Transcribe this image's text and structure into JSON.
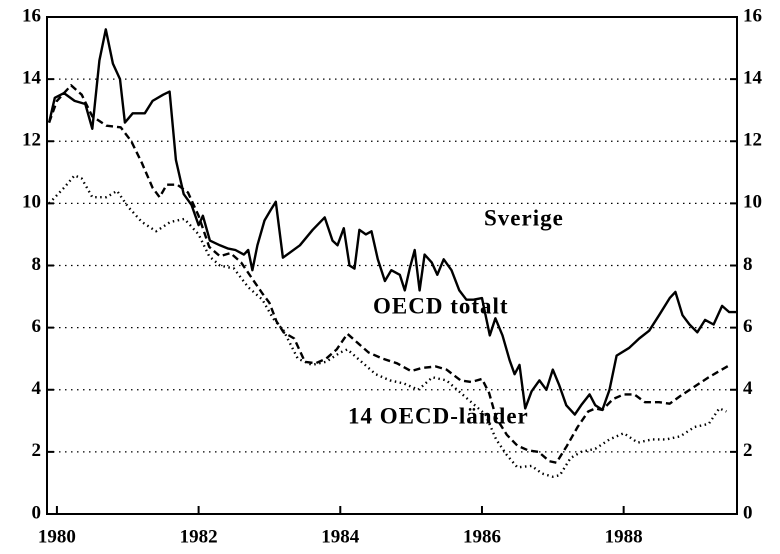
{
  "chart_data": {
    "type": "line",
    "xlim": [
      1979.86,
      1989.6
    ],
    "xticks": [
      1980,
      1982,
      1984,
      1986,
      1988
    ],
    "ylim": [
      0,
      16
    ],
    "yticks": [
      0,
      2,
      4,
      6,
      8,
      10,
      12,
      14,
      16
    ],
    "grid": true,
    "right_axis_labels": true,
    "series": [
      {
        "name": "Sverige",
        "color": "#000000",
        "dash": "solid",
        "x": [
          1979.89,
          1979.97,
          1980.1,
          1980.25,
          1980.4,
          1980.5,
          1980.6,
          1980.69,
          1980.79,
          1980.89,
          1980.96,
          1981.07,
          1981.24,
          1981.35,
          1981.5,
          1981.59,
          1981.68,
          1981.79,
          1981.9,
          1982.0,
          1982.06,
          1982.16,
          1982.3,
          1982.41,
          1982.52,
          1982.64,
          1982.7,
          1982.76,
          1982.83,
          1982.93,
          1983.02,
          1983.09,
          1983.19,
          1983.43,
          1983.61,
          1983.78,
          1983.89,
          1983.96,
          1984.05,
          1984.13,
          1984.2,
          1984.27,
          1984.36,
          1984.44,
          1984.53,
          1984.63,
          1984.72,
          1984.84,
          1984.91,
          1984.98,
          1985.05,
          1985.12,
          1985.19,
          1985.29,
          1985.37,
          1985.46,
          1985.57,
          1985.68,
          1985.78,
          1985.88,
          1986.0,
          1986.11,
          1986.19,
          1986.29,
          1986.39,
          1986.46,
          1986.53,
          1986.61,
          1986.7,
          1986.81,
          1986.91,
          1987.0,
          1987.09,
          1987.19,
          1987.31,
          1987.4,
          1987.52,
          1987.6,
          1987.7,
          1987.8,
          1987.9,
          1988.08,
          1988.22,
          1988.36,
          1988.5,
          1988.65,
          1988.73,
          1988.83,
          1988.93,
          1989.04,
          1989.15,
          1989.27,
          1989.39,
          1989.49,
          1989.59
        ],
        "values": [
          12.6,
          13.4,
          13.55,
          13.3,
          13.2,
          12.4,
          14.6,
          15.6,
          14.5,
          14.0,
          12.6,
          12.9,
          12.9,
          13.3,
          13.5,
          13.6,
          11.4,
          10.3,
          9.95,
          9.3,
          9.6,
          8.8,
          8.65,
          8.55,
          8.5,
          8.35,
          8.5,
          7.85,
          8.65,
          9.45,
          9.8,
          10.05,
          8.25,
          8.65,
          9.15,
          9.55,
          8.8,
          8.65,
          9.2,
          8.0,
          7.9,
          9.15,
          9.0,
          9.1,
          8.2,
          7.5,
          7.85,
          7.7,
          7.2,
          7.9,
          8.5,
          7.2,
          8.35,
          8.1,
          7.7,
          8.2,
          7.85,
          7.2,
          6.9,
          6.9,
          6.95,
          5.75,
          6.3,
          5.75,
          4.95,
          4.5,
          4.8,
          3.4,
          3.95,
          4.3,
          4.0,
          4.65,
          4.15,
          3.5,
          3.2,
          3.5,
          3.85,
          3.5,
          3.35,
          4.0,
          5.1,
          5.35,
          5.65,
          5.9,
          6.4,
          6.95,
          7.15,
          6.4,
          6.1,
          5.85,
          6.25,
          6.1,
          6.7,
          6.5,
          6.5
        ]
      },
      {
        "name": "OECD totalt",
        "color": "#000000",
        "dash": "dashed",
        "x": [
          1979.89,
          1980.0,
          1980.2,
          1980.35,
          1980.5,
          1980.7,
          1980.9,
          1981.05,
          1981.2,
          1981.35,
          1981.45,
          1981.55,
          1981.7,
          1981.85,
          1982.0,
          1982.15,
          1982.3,
          1982.45,
          1982.6,
          1982.75,
          1982.9,
          1983.0,
          1983.1,
          1983.2,
          1983.35,
          1983.5,
          1983.65,
          1983.8,
          1983.95,
          1984.1,
          1984.25,
          1984.4,
          1984.6,
          1984.8,
          1985.0,
          1985.15,
          1985.35,
          1985.5,
          1985.7,
          1985.85,
          1986.0,
          1986.1,
          1986.2,
          1986.35,
          1986.5,
          1986.65,
          1986.8,
          1986.95,
          1987.05,
          1987.2,
          1987.35,
          1987.5,
          1987.6,
          1987.7,
          1987.85,
          1988.0,
          1988.15,
          1988.3,
          1988.5,
          1988.65,
          1988.8,
          1989.0,
          1989.2,
          1989.35,
          1989.5
        ],
        "values": [
          12.6,
          13.3,
          13.8,
          13.5,
          12.8,
          12.5,
          12.45,
          12.0,
          11.3,
          10.5,
          10.2,
          10.6,
          10.6,
          10.35,
          9.6,
          8.6,
          8.3,
          8.4,
          8.1,
          7.6,
          7.1,
          6.8,
          6.2,
          5.85,
          5.65,
          4.9,
          4.85,
          5.0,
          5.3,
          5.8,
          5.5,
          5.2,
          5.0,
          4.85,
          4.6,
          4.7,
          4.75,
          4.65,
          4.3,
          4.25,
          4.35,
          3.9,
          3.1,
          2.55,
          2.2,
          2.05,
          2.0,
          1.7,
          1.65,
          2.2,
          2.8,
          3.3,
          3.4,
          3.35,
          3.7,
          3.85,
          3.85,
          3.6,
          3.6,
          3.55,
          3.8,
          4.1,
          4.4,
          4.6,
          4.8
        ]
      },
      {
        "name": "14 OECD-länder",
        "color": "#000000",
        "dash": "dotted",
        "x": [
          1979.89,
          1980.1,
          1980.25,
          1980.35,
          1980.5,
          1980.7,
          1980.85,
          1981.0,
          1981.2,
          1981.4,
          1981.6,
          1981.8,
          1982.0,
          1982.15,
          1982.3,
          1982.5,
          1982.7,
          1982.9,
          1983.05,
          1983.2,
          1983.4,
          1983.6,
          1983.8,
          1984.0,
          1984.1,
          1984.3,
          1984.5,
          1984.7,
          1984.9,
          1985.1,
          1985.3,
          1985.5,
          1985.7,
          1985.9,
          1986.05,
          1986.2,
          1986.35,
          1986.5,
          1986.7,
          1986.85,
          1987.0,
          1987.1,
          1987.25,
          1987.4,
          1987.6,
          1987.8,
          1988.0,
          1988.2,
          1988.4,
          1988.6,
          1988.8,
          1989.0,
          1989.2,
          1989.35,
          1989.45
        ],
        "values": [
          10.0,
          10.5,
          10.9,
          10.8,
          10.2,
          10.2,
          10.4,
          9.9,
          9.4,
          9.1,
          9.4,
          9.5,
          9.0,
          8.3,
          8.0,
          7.9,
          7.3,
          6.9,
          6.3,
          5.9,
          5.0,
          4.8,
          4.9,
          5.2,
          5.3,
          4.9,
          4.5,
          4.3,
          4.2,
          4.0,
          4.4,
          4.3,
          3.9,
          3.5,
          3.2,
          2.4,
          1.9,
          1.5,
          1.55,
          1.3,
          1.2,
          1.25,
          1.8,
          2.0,
          2.1,
          2.4,
          2.6,
          2.3,
          2.4,
          2.4,
          2.5,
          2.8,
          2.9,
          3.4,
          3.3
        ]
      }
    ]
  }
}
